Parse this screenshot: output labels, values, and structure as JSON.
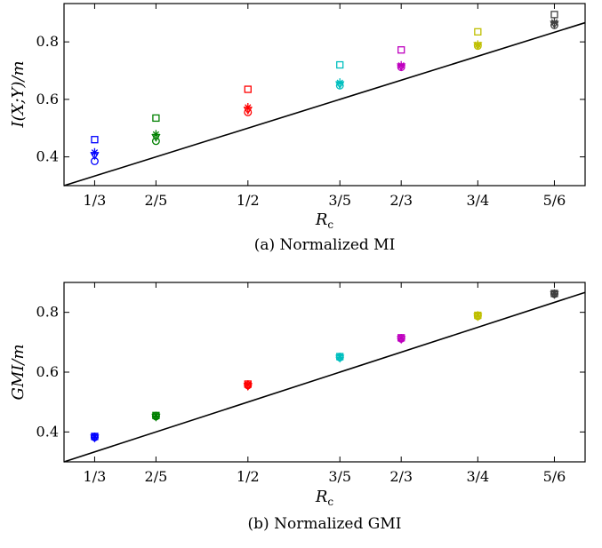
{
  "chart_data": [
    {
      "type": "scatter",
      "caption": "(a) Normalized MI",
      "xlabel": "R_c",
      "ylabel": "I(X;Y)/m",
      "x_ticks": [
        0.3333,
        0.4,
        0.5,
        0.6,
        0.6667,
        0.75,
        0.8333
      ],
      "x_tick_labels": [
        "1/3",
        "2/5",
        "1/2",
        "3/5",
        "2/3",
        "3/4",
        "5/6"
      ],
      "y_ticks": [
        0.4,
        0.6,
        0.8
      ],
      "y_tick_labels": [
        "0.4",
        "0.6",
        "0.8"
      ],
      "xlim": [
        0.3,
        0.8667
      ],
      "ylim": [
        0.3,
        0.9333
      ],
      "colors": [
        "#0000ff",
        "#008000",
        "#ff0000",
        "#00bfbf",
        "#bf00bf",
        "#bfbf00",
        "#3f3f3f"
      ],
      "reference_line": {
        "x": [
          0.3,
          0.8667
        ],
        "y": [
          0.3,
          0.8667
        ]
      },
      "series": [
        {
          "marker": "square",
          "values": [
            0.46,
            0.535,
            0.635,
            0.72,
            0.772,
            0.835,
            0.895
          ]
        },
        {
          "marker": "star",
          "values": [
            0.415,
            0.478,
            0.572,
            0.658,
            0.718,
            0.79,
            0.868
          ]
        },
        {
          "marker": "triangle-down",
          "values": [
            0.405,
            0.468,
            0.563,
            0.652,
            0.714,
            0.788,
            0.862
          ]
        },
        {
          "marker": "circle",
          "values": [
            0.385,
            0.455,
            0.555,
            0.648,
            0.712,
            0.786,
            0.858
          ]
        }
      ]
    },
    {
      "type": "scatter",
      "caption": "(b) Normalized GMI",
      "xlabel": "R_c",
      "ylabel": "GMI/m",
      "x_ticks": [
        0.3333,
        0.4,
        0.5,
        0.6,
        0.6667,
        0.75,
        0.8333
      ],
      "x_tick_labels": [
        "1/3",
        "2/5",
        "1/2",
        "3/5",
        "2/3",
        "3/4",
        "5/6"
      ],
      "y_ticks": [
        0.4,
        0.6,
        0.8
      ],
      "y_tick_labels": [
        "0.4",
        "0.6",
        "0.8"
      ],
      "xlim": [
        0.3,
        0.8667
      ],
      "ylim": [
        0.3,
        0.9
      ],
      "colors": [
        "#0000ff",
        "#008000",
        "#ff0000",
        "#00bfbf",
        "#bf00bf",
        "#bfbf00",
        "#3f3f3f"
      ],
      "reference_line": {
        "x": [
          0.3,
          0.8667
        ],
        "y": [
          0.3,
          0.8667
        ]
      },
      "series": [
        {
          "marker": "square",
          "values": [
            0.385,
            0.455,
            0.56,
            0.652,
            0.715,
            0.79,
            0.863
          ]
        },
        {
          "marker": "star",
          "values": [
            0.383,
            0.453,
            0.558,
            0.65,
            0.713,
            0.789,
            0.862
          ]
        },
        {
          "marker": "triangle-down",
          "values": [
            0.38,
            0.45,
            0.553,
            0.647,
            0.71,
            0.786,
            0.86
          ]
        },
        {
          "marker": "circle",
          "values": [
            0.382,
            0.452,
            0.556,
            0.649,
            0.712,
            0.787,
            0.861
          ]
        }
      ]
    }
  ]
}
